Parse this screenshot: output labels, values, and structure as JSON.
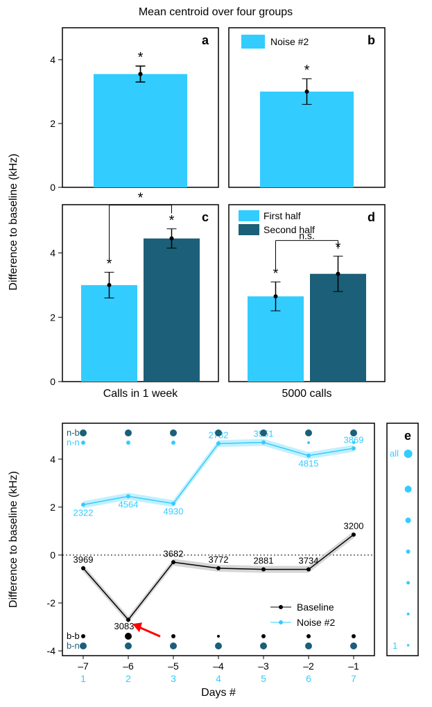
{
  "figure": {
    "title": "Mean centroid over four groups",
    "ylabel": "Difference to baseline (kHz)",
    "xlabel_cd_left": "Calls in 1 week",
    "xlabel_cd_right": "5000 calls",
    "xlabel_e": "Days #",
    "background_color": "#ffffff",
    "border_color": "#000000",
    "border_width": 1.5,
    "colors": {
      "noise2": "#33ccff",
      "first_half": "#33ccff",
      "second_half": "#1b5f78",
      "baseline_line": "#000000",
      "baseline_shade": "#888888",
      "noise_shade": "#99e6ff",
      "grid_dotted": "#000000",
      "arrow": "#ff0000"
    },
    "panel_a": {
      "label": "a",
      "ylim": [
        0,
        5
      ],
      "yticks": [
        0,
        2,
        4
      ],
      "bar_value": 3.55,
      "err": 0.25,
      "sig": "*"
    },
    "panel_b": {
      "label": "b",
      "legend": "Noise #2",
      "ylim": [
        0,
        5
      ],
      "yticks": [
        0,
        2,
        4
      ],
      "bar_value": 3.0,
      "err": 0.4,
      "sig": "*"
    },
    "panel_c": {
      "label": "c",
      "ylim": [
        0,
        5.5
      ],
      "yticks": [
        0,
        2,
        4
      ],
      "bars": [
        {
          "value": 3.0,
          "err": 0.4,
          "sig": "*"
        },
        {
          "value": 4.45,
          "err": 0.3,
          "sig": "*"
        }
      ],
      "comparison": "*"
    },
    "panel_d": {
      "label": "d",
      "legend1": "First half",
      "legend2": "Second half",
      "ylim": [
        0,
        5.5
      ],
      "yticks": [
        0,
        2,
        4
      ],
      "bars": [
        {
          "value": 2.65,
          "err": 0.45,
          "sig": "*"
        },
        {
          "value": 3.35,
          "err": 0.55,
          "sig": "*"
        }
      ],
      "comparison": "n.s."
    },
    "panel_e": {
      "label": "e",
      "ylim": [
        -4.2,
        5.5
      ],
      "yticks": [
        -4,
        -2,
        0,
        2,
        4
      ],
      "x_days": [
        -7,
        -6,
        -5,
        -4,
        -3,
        -2,
        -1
      ],
      "x_idx": [
        1,
        2,
        3,
        4,
        5,
        6,
        7
      ],
      "noise": {
        "y": [
          2.1,
          2.45,
          2.15,
          4.65,
          4.7,
          4.15,
          4.45
        ],
        "labels": [
          "2322",
          "4564",
          "4930",
          "2782",
          "3951",
          "4815",
          "3869"
        ]
      },
      "baseline": {
        "y": [
          -0.55,
          -2.7,
          -0.3,
          -0.55,
          -0.6,
          -0.6,
          0.85
        ],
        "labels": [
          "3969",
          "3083",
          "3682",
          "3772",
          "2881",
          "3734",
          "3200"
        ]
      },
      "legend_baseline": "Baseline",
      "legend_noise": "Noise #2",
      "dot_rows": {
        "nb": "n-b",
        "nn": "n-n",
        "bb": "b-b",
        "bn": "b-n"
      },
      "nb_sizes": [
        5,
        5,
        5,
        5,
        5,
        5,
        5
      ],
      "nn_sizes": [
        3,
        3,
        3,
        2,
        2,
        2,
        2
      ],
      "bb_sizes": [
        3,
        5,
        3,
        2,
        3,
        3,
        3
      ],
      "bn_sizes": [
        5,
        5,
        5,
        5,
        5,
        5,
        5
      ],
      "mini": {
        "label_all": "all",
        "label_1": "1",
        "sizes": [
          5,
          4,
          3,
          2.5,
          2,
          1.8
        ]
      }
    }
  }
}
